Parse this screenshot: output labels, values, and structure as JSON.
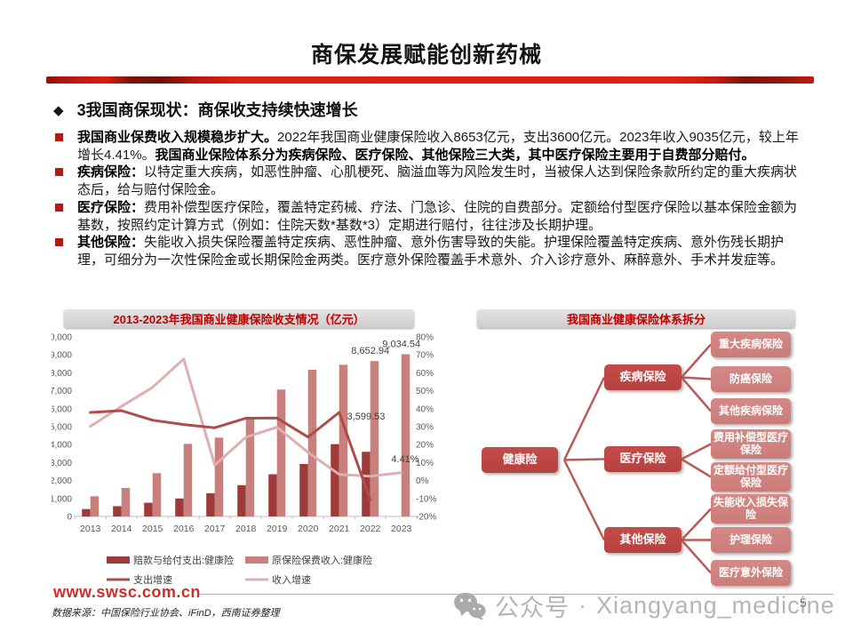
{
  "slide": {
    "title": "商保发展赋能创新药械",
    "section_header": "3我国商保现状：商保收支持续快速增长",
    "page_number": "5"
  },
  "bullets": [
    {
      "segments": [
        {
          "text": "我国商业保费收入规模稳步扩大。",
          "bold": true
        },
        {
          "text": "2022年我国商业健康保险收入8653亿元，支出3600亿元。2023年收入9035亿元，较上年增长4.41%。",
          "bold": false
        },
        {
          "text": "我国商业保险体系分为疾病保险、医疗保险、其他保险三大类，其中医疗保险主要用于自费部分赔付。",
          "bold": true
        }
      ]
    },
    {
      "segments": [
        {
          "text": "疾病保险：",
          "bold": true
        },
        {
          "text": "以特定重大疾病，如恶性肿瘤、心肌梗死、脑溢血等为风险发生时，当被保人达到保险条款所约定的重大疾病状态后，给与赔付保险金。",
          "bold": false
        }
      ]
    },
    {
      "segments": [
        {
          "text": "医疗保险：",
          "bold": true
        },
        {
          "text": "费用补偿型医疗保险，覆盖特定药械、疗法、门急诊、住院的自费部分。定额给付型医疗保险以基本保险金额为基数，按照约定计算方式（例如：住院天数*基数*3）定期进行赔付，往往涉及长期护理。",
          "bold": false
        }
      ]
    },
    {
      "segments": [
        {
          "text": "其他保险：",
          "bold": true
        },
        {
          "text": "失能收入损失保险覆盖特定疾病、恶性肿瘤、意外伤害导致的失能。护理保险覆盖特定疾病、意外伤残长期护理，可细分为一次性保险金或长期保险金两类。医疗意外保险覆盖手术意外、介入诊疗意外、麻醉意外、手术并发症等。",
          "bold": false
        }
      ]
    }
  ],
  "chart_data": {
    "type": "bar+line",
    "title": "2013-2023年我国商业健康保险收支情况（亿元）",
    "categories": [
      "2013",
      "2014",
      "2015",
      "2016",
      "2017",
      "2018",
      "2019",
      "2020",
      "2021",
      "2022",
      "2023"
    ],
    "series": [
      {
        "name": "赔款与给付支出:健康险",
        "type": "bar",
        "axis": "left",
        "color_key": "bar_dark",
        "values": [
          411.13,
          571.16,
          762.97,
          1000.75,
          1294.77,
          1744.34,
          2351.1,
          2921.22,
          4028.48,
          3599.53,
          null
        ]
      },
      {
        "name": "原保险保费收入:健康险",
        "type": "bar",
        "axis": "left",
        "color_key": "bar_light",
        "values": [
          1123.5,
          1587.18,
          2410.47,
          4042.5,
          4389.46,
          5448.13,
          7065.98,
          8172.71,
          8447.02,
          8652.94,
          9034.54
        ]
      },
      {
        "name": "支出增速",
        "type": "line",
        "axis": "right",
        "color_key": "line_dark",
        "values": [
          37.9,
          38.9,
          33.6,
          31.2,
          29.4,
          34.7,
          34.8,
          24.2,
          37.9,
          -10.7,
          null
        ]
      },
      {
        "name": "收入增速",
        "type": "line",
        "axis": "right",
        "color_key": "line_light",
        "values": [
          30.2,
          41.3,
          51.9,
          67.7,
          8.6,
          24.1,
          29.7,
          15.7,
          3.4,
          2.4,
          4.41
        ]
      }
    ],
    "left_axis": {
      "min": 0,
      "max": 10000,
      "step": 1000
    },
    "right_axis": {
      "min": -20,
      "max": 80,
      "step": 10,
      "suffix": "%"
    },
    "annotations": [
      {
        "text": "8,652.94"
      },
      {
        "text": "9,034.54"
      },
      {
        "text": "3,599.53"
      },
      {
        "text": "4.41%"
      }
    ],
    "legend_position": "bottom",
    "grid": false
  },
  "diagram": {
    "title": "我国商业健康保险体系拆分",
    "root": "健康险",
    "branches": [
      {
        "label": "疾病保险",
        "children": [
          "重大疾病保险",
          "防癌保险",
          "其他疾病保险"
        ]
      },
      {
        "label": "医疗保险",
        "children": [
          "费用补偿型医疗保险",
          "定额给付型医疗保险"
        ]
      },
      {
        "label": "其他保险",
        "children": [
          "失能收入损失保险",
          "护理保险",
          "医疗意外保险"
        ]
      }
    ]
  },
  "footer": {
    "website": "www.swsc.com.cn",
    "source": "数据来源：中国保险行业协会、iFinD，西南证券整理",
    "watermark_prefix": "公众号",
    "watermark_separator": "·",
    "watermark_account": "Xiangyang_medicine"
  },
  "colors": {
    "accent_red": "#c00000",
    "bar_dark": "#9e3b38",
    "bar_light": "#c8807d",
    "line_dark": "#b04b47",
    "line_light": "#ddafb1",
    "node_dark": "#bc4643",
    "node_leaf": "#cf827f",
    "connector": "#bb5a56",
    "axis_gray": "#bfbfbf",
    "bullet_red": "#ae1e17",
    "watermark_gray": "#b5b5b5"
  }
}
